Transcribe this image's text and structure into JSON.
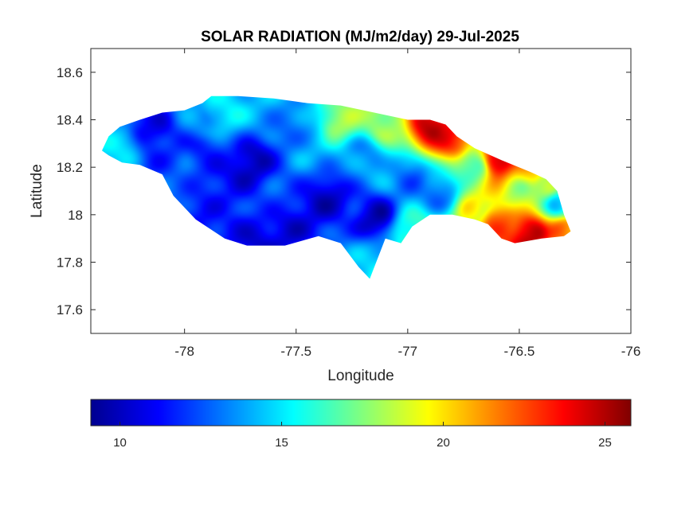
{
  "chart_data": {
    "type": "heatmap",
    "title": "SOLAR RADIATION (MJ/m2/day) 29-Jul-2025",
    "xlabel": "Longitude",
    "ylabel": "Latitude",
    "xlim": [
      -78.42,
      -76.0
    ],
    "ylim": [
      17.5,
      18.7
    ],
    "xticks": [
      -78,
      -77.5,
      -77,
      -76.5,
      -76
    ],
    "yticks": [
      17.6,
      17.8,
      18,
      18.2,
      18.4,
      18.6
    ],
    "grid": false,
    "colormap": "jet",
    "colorbar": {
      "orientation": "horizontal",
      "placement": "below",
      "range": [
        9.1,
        25.8
      ],
      "ticks": [
        10,
        15,
        20,
        25
      ]
    },
    "colorbar_colors": [
      "#00008f",
      "#0000ff",
      "#00ffff",
      "#ffff00",
      "#ff0000",
      "#800000"
    ],
    "land_outline": [
      [
        -78.37,
        18.27
      ],
      [
        -78.34,
        18.33
      ],
      [
        -78.29,
        18.37
      ],
      [
        -78.2,
        18.4
      ],
      [
        -78.1,
        18.43
      ],
      [
        -78.0,
        18.44
      ],
      [
        -77.92,
        18.47
      ],
      [
        -77.88,
        18.5
      ],
      [
        -77.76,
        18.5
      ],
      [
        -77.6,
        18.49
      ],
      [
        -77.45,
        18.47
      ],
      [
        -77.3,
        18.46
      ],
      [
        -77.15,
        18.43
      ],
      [
        -77.0,
        18.4
      ],
      [
        -76.9,
        18.4
      ],
      [
        -76.83,
        18.38
      ],
      [
        -76.78,
        18.33
      ],
      [
        -76.7,
        18.28
      ],
      [
        -76.58,
        18.23
      ],
      [
        -76.45,
        18.18
      ],
      [
        -76.38,
        18.15
      ],
      [
        -76.33,
        18.1
      ],
      [
        -76.3,
        18.0
      ],
      [
        -76.27,
        17.93
      ],
      [
        -76.3,
        17.91
      ],
      [
        -76.4,
        17.9
      ],
      [
        -76.52,
        17.88
      ],
      [
        -76.58,
        17.9
      ],
      [
        -76.64,
        17.96
      ],
      [
        -76.7,
        17.98
      ],
      [
        -76.8,
        18.0
      ],
      [
        -76.9,
        18.0
      ],
      [
        -76.98,
        17.95
      ],
      [
        -77.03,
        17.88
      ],
      [
        -77.1,
        17.9
      ],
      [
        -77.17,
        17.73
      ],
      [
        -77.22,
        17.78
      ],
      [
        -77.3,
        17.88
      ],
      [
        -77.4,
        17.91
      ],
      [
        -77.55,
        17.87
      ],
      [
        -77.72,
        17.87
      ],
      [
        -77.82,
        17.9
      ],
      [
        -77.95,
        17.98
      ],
      [
        -78.05,
        18.08
      ],
      [
        -78.1,
        18.17
      ],
      [
        -78.2,
        18.21
      ],
      [
        -78.28,
        18.22
      ],
      [
        -78.34,
        18.25
      ]
    ],
    "value_field": [
      {
        "lon": -78.3,
        "lat": 18.28,
        "value": 14.5
      },
      {
        "lon": -78.15,
        "lat": 18.38,
        "value": 10.5
      },
      {
        "lon": -78.05,
        "lat": 18.25,
        "value": 12.5
      },
      {
        "lon": -77.95,
        "lat": 18.4,
        "value": 14.0
      },
      {
        "lon": -77.85,
        "lat": 18.45,
        "value": 15.5
      },
      {
        "lon": -77.9,
        "lat": 18.25,
        "value": 11.0
      },
      {
        "lon": -77.85,
        "lat": 18.05,
        "value": 12.0
      },
      {
        "lon": -77.75,
        "lat": 17.92,
        "value": 10.5
      },
      {
        "lon": -77.7,
        "lat": 18.22,
        "value": 10.5
      },
      {
        "lon": -77.6,
        "lat": 18.4,
        "value": 13.5
      },
      {
        "lon": -77.55,
        "lat": 18.1,
        "value": 12.0
      },
      {
        "lon": -77.5,
        "lat": 17.92,
        "value": 11.0
      },
      {
        "lon": -77.45,
        "lat": 18.3,
        "value": 13.5
      },
      {
        "lon": -77.35,
        "lat": 18.05,
        "value": 10.5
      },
      {
        "lon": -77.3,
        "lat": 18.4,
        "value": 17.5
      },
      {
        "lon": -77.2,
        "lat": 18.25,
        "value": 14.0
      },
      {
        "lon": -77.15,
        "lat": 18.0,
        "value": 10.0
      },
      {
        "lon": -77.17,
        "lat": 17.8,
        "value": 15.0
      },
      {
        "lon": -77.1,
        "lat": 18.38,
        "value": 18.5
      },
      {
        "lon": -77.0,
        "lat": 18.18,
        "value": 12.5
      },
      {
        "lon": -76.98,
        "lat": 17.95,
        "value": 16.5
      },
      {
        "lon": -76.9,
        "lat": 18.38,
        "value": 24.5
      },
      {
        "lon": -76.85,
        "lat": 18.08,
        "value": 13.0
      },
      {
        "lon": -76.8,
        "lat": 18.32,
        "value": 23.5
      },
      {
        "lon": -76.7,
        "lat": 18.2,
        "value": 16.0
      },
      {
        "lon": -76.7,
        "lat": 18.02,
        "value": 19.0
      },
      {
        "lon": -76.6,
        "lat": 18.23,
        "value": 24.5
      },
      {
        "lon": -76.6,
        "lat": 17.97,
        "value": 23.0
      },
      {
        "lon": -76.5,
        "lat": 18.1,
        "value": 18.5
      },
      {
        "lon": -76.45,
        "lat": 18.18,
        "value": 21.0
      },
      {
        "lon": -76.45,
        "lat": 17.92,
        "value": 24.5
      },
      {
        "lon": -76.38,
        "lat": 18.12,
        "value": 18.0
      },
      {
        "lon": -76.33,
        "lat": 18.05,
        "value": 14.0
      },
      {
        "lon": -76.3,
        "lat": 17.93,
        "value": 22.0
      }
    ]
  }
}
